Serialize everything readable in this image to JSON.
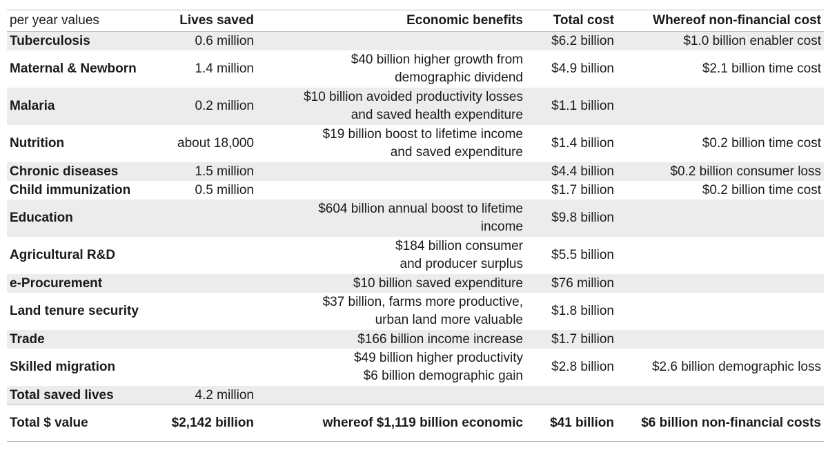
{
  "header": {
    "label": "per year values",
    "lives_saved": "Lives saved",
    "economic_benefits": "Economic benefits",
    "total_cost": "Total cost",
    "non_financial_cost": "Whereof non-financial cost"
  },
  "rows": [
    {
      "name": "Tuberculosis",
      "lives": "0.6 million",
      "benefits": [],
      "cost": "$6.2 billion",
      "nonfin": "$1.0 billion enabler cost"
    },
    {
      "name": "Maternal & Newborn",
      "lives": "1.4 million",
      "benefits": [
        "$40 billion higher growth from",
        "demographic dividend"
      ],
      "cost": "$4.9 billion",
      "nonfin": "$2.1 billion time cost"
    },
    {
      "name": "Malaria",
      "lives": "0.2 million",
      "benefits": [
        "$10 billion avoided productivity losses",
        "and saved health expenditure"
      ],
      "cost": "$1.1 billion",
      "nonfin": ""
    },
    {
      "name": "Nutrition",
      "lives": "about 18,000",
      "benefits": [
        "$19 billion boost to lifetime income",
        "and saved expenditure"
      ],
      "cost": "$1.4 billion",
      "nonfin": "$0.2 billion time cost"
    },
    {
      "name": "Chronic diseases",
      "lives": "1.5 million",
      "benefits": [],
      "cost": "$4.4 billion",
      "nonfin": "$0.2 billion consumer loss"
    },
    {
      "name": "Child immunization",
      "lives": "0.5 million",
      "benefits": [],
      "cost": "$1.7 billion",
      "nonfin": "$0.2 billion time cost"
    },
    {
      "name": "Education",
      "lives": "",
      "benefits": [
        "$604 billion annual boost to lifetime",
        "income"
      ],
      "cost": "$9.8 billion",
      "nonfin": ""
    },
    {
      "name": "Agricultural R&D",
      "lives": "",
      "benefits": [
        "$184 billion consumer",
        "and producer surplus"
      ],
      "cost": "$5.5 billion",
      "nonfin": ""
    },
    {
      "name": "e-Procurement",
      "lives": "",
      "benefits": [
        "$10 billion saved expenditure"
      ],
      "cost": "$76 million",
      "nonfin": ""
    },
    {
      "name": "Land tenure security",
      "lives": "",
      "benefits": [
        "$37 billion, farms more productive,",
        "urban land more valuable"
      ],
      "cost": "$1.8 billion",
      "nonfin": ""
    },
    {
      "name": "Trade",
      "lives": "",
      "benefits": [
        "$166 billion income increase"
      ],
      "cost": "$1.7 billion",
      "nonfin": ""
    },
    {
      "name": "Skilled migration",
      "lives": "",
      "benefits": [
        "$49 billion higher productivity",
        "$6 billion demographic gain"
      ],
      "cost": "$2.8 billion",
      "nonfin": "$2.6 billion demographic loss"
    },
    {
      "name": "Total saved lives",
      "lives": "4.2 million",
      "benefits": [],
      "cost": "",
      "nonfin": ""
    }
  ],
  "total": {
    "name": "Total $ value",
    "lives": "$2,142 billion",
    "benefits": "whereof $1,119 billion economic",
    "cost": "$41 billion",
    "nonfin": "$6 billion non-financial costs"
  }
}
